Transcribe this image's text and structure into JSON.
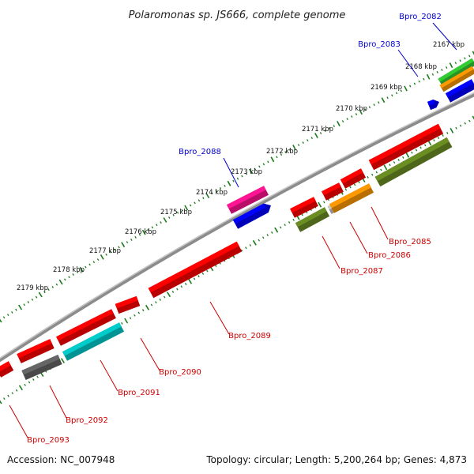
{
  "title": "Polaromonas sp. JS666, complete genome",
  "footer": {
    "accession": "Accession: NC_007948",
    "summary": "Topology: circular; Length: 5,200,264 bp; Genes: 4,873"
  },
  "colors": {
    "backbone": "#8c8c8c",
    "tick": "#1a7a1a",
    "label_red": "#cc0000",
    "label_blue": "#0000cc",
    "red": "#ff0000",
    "olive": "#6b8e23",
    "orange": "#ff9900",
    "gray": "#cccccc",
    "magenta": "#ff1493",
    "blue": "#0000ff",
    "green": "#33cc33",
    "cyan": "#00cccc",
    "darkgray": "#666666"
  },
  "scale_labels": [
    "2167 kbp",
    "2168 kbp",
    "2169 kbp",
    "2170 kbp",
    "2171 kbp",
    "2172 kbp",
    "2173 kbp",
    "2174 kbp",
    "2175 kbp",
    "2176 kbp",
    "2177 kbp",
    "2178 kbp",
    "2179 kbp"
  ],
  "gene_labels": [
    {
      "text": "Bpro_2082",
      "color": "blue"
    },
    {
      "text": "Bpro_2083",
      "color": "blue"
    },
    {
      "text": "Bpro_2088",
      "color": "blue"
    },
    {
      "text": "Bpro_2085",
      "color": "red"
    },
    {
      "text": "Bpro_2086",
      "color": "red"
    },
    {
      "text": "Bpro_2087",
      "color": "red"
    },
    {
      "text": "Bpro_2089",
      "color": "red"
    },
    {
      "text": "Bpro_2090",
      "color": "red"
    },
    {
      "text": "Bpro_2091",
      "color": "red"
    },
    {
      "text": "Bpro_2092",
      "color": "red"
    },
    {
      "text": "Bpro_2093",
      "color": "red"
    }
  ]
}
